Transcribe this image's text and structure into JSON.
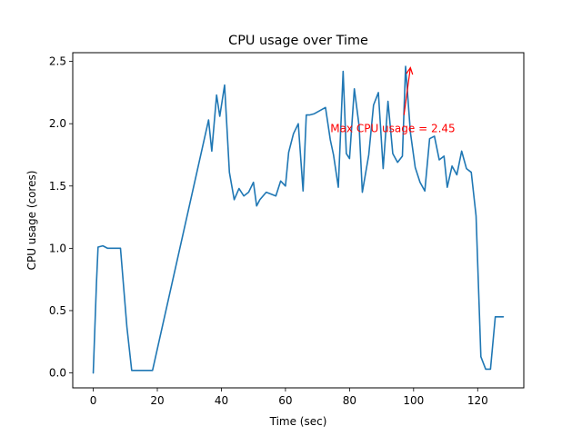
{
  "chart_data": {
    "type": "line",
    "title": "CPU usage over Time",
    "xlabel": "Time (sec)",
    "ylabel": "CPU usage (cores)",
    "xlim": [
      -6.4,
      134.4
    ],
    "ylim": [
      -0.12,
      2.57
    ],
    "xticks": [
      0,
      20,
      40,
      60,
      80,
      100,
      120
    ],
    "yticks": [
      0.0,
      0.5,
      1.0,
      1.5,
      2.0,
      2.5
    ],
    "xtick_labels": [
      "0",
      "20",
      "40",
      "60",
      "80",
      "100",
      "120"
    ],
    "ytick_labels": [
      "0.0",
      "0.5",
      "1.0",
      "1.5",
      "2.0",
      "2.5"
    ],
    "grid": false,
    "legend": "none",
    "series": [
      {
        "color": "#1f77b4",
        "x": [
          0,
          1,
          1.5,
          3,
          4.5,
          6,
          8.5,
          10.5,
          12,
          14,
          16,
          18.5,
          36,
          37,
          38.5,
          39.5,
          41,
          42.5,
          44,
          45.5,
          47,
          48.5,
          50,
          51,
          52,
          54,
          57,
          58.5,
          60,
          61,
          62.5,
          64,
          65.5,
          66.5,
          67.5,
          69,
          72.5,
          74,
          75,
          76.5,
          78,
          79,
          80,
          81.5,
          83,
          84,
          86,
          87.5,
          89,
          90.5,
          92,
          93.5,
          95,
          96.5,
          97.5,
          99,
          100.5,
          102,
          103.5,
          105,
          106.5,
          108,
          109.5,
          110.5,
          112,
          113.5,
          115,
          116.5,
          118,
          119.5,
          121,
          122.5,
          124,
          125.5,
          127,
          128
        ],
        "y": [
          0.0,
          0.72,
          1.01,
          1.02,
          1.0,
          1.0,
          1.0,
          0.37,
          0.02,
          0.02,
          0.02,
          0.02,
          2.03,
          1.78,
          2.23,
          2.06,
          2.31,
          1.61,
          1.39,
          1.48,
          1.42,
          1.45,
          1.53,
          1.34,
          1.39,
          1.45,
          1.42,
          1.54,
          1.5,
          1.77,
          1.92,
          2.0,
          1.46,
          2.07,
          2.07,
          2.08,
          2.13,
          1.87,
          1.75,
          1.49,
          2.42,
          1.76,
          1.72,
          2.28,
          1.98,
          1.45,
          1.75,
          2.15,
          2.25,
          1.64,
          2.18,
          1.76,
          1.69,
          1.74,
          2.46,
          1.93,
          1.65,
          1.53,
          1.46,
          1.88,
          1.9,
          1.71,
          1.74,
          1.49,
          1.66,
          1.59,
          1.78,
          1.64,
          1.61,
          1.26,
          0.13,
          0.03,
          0.03,
          0.45,
          0.45,
          0.45
        ]
      }
    ],
    "annotations": [
      {
        "text": "Max CPU usage = 2.45",
        "color": "#ff0000",
        "text_x": 74,
        "text_y": 1.96,
        "arrow_to_x": 99,
        "arrow_to_y": 2.45,
        "arrow_from_x": 97,
        "arrow_from_y": 2.07
      }
    ]
  }
}
